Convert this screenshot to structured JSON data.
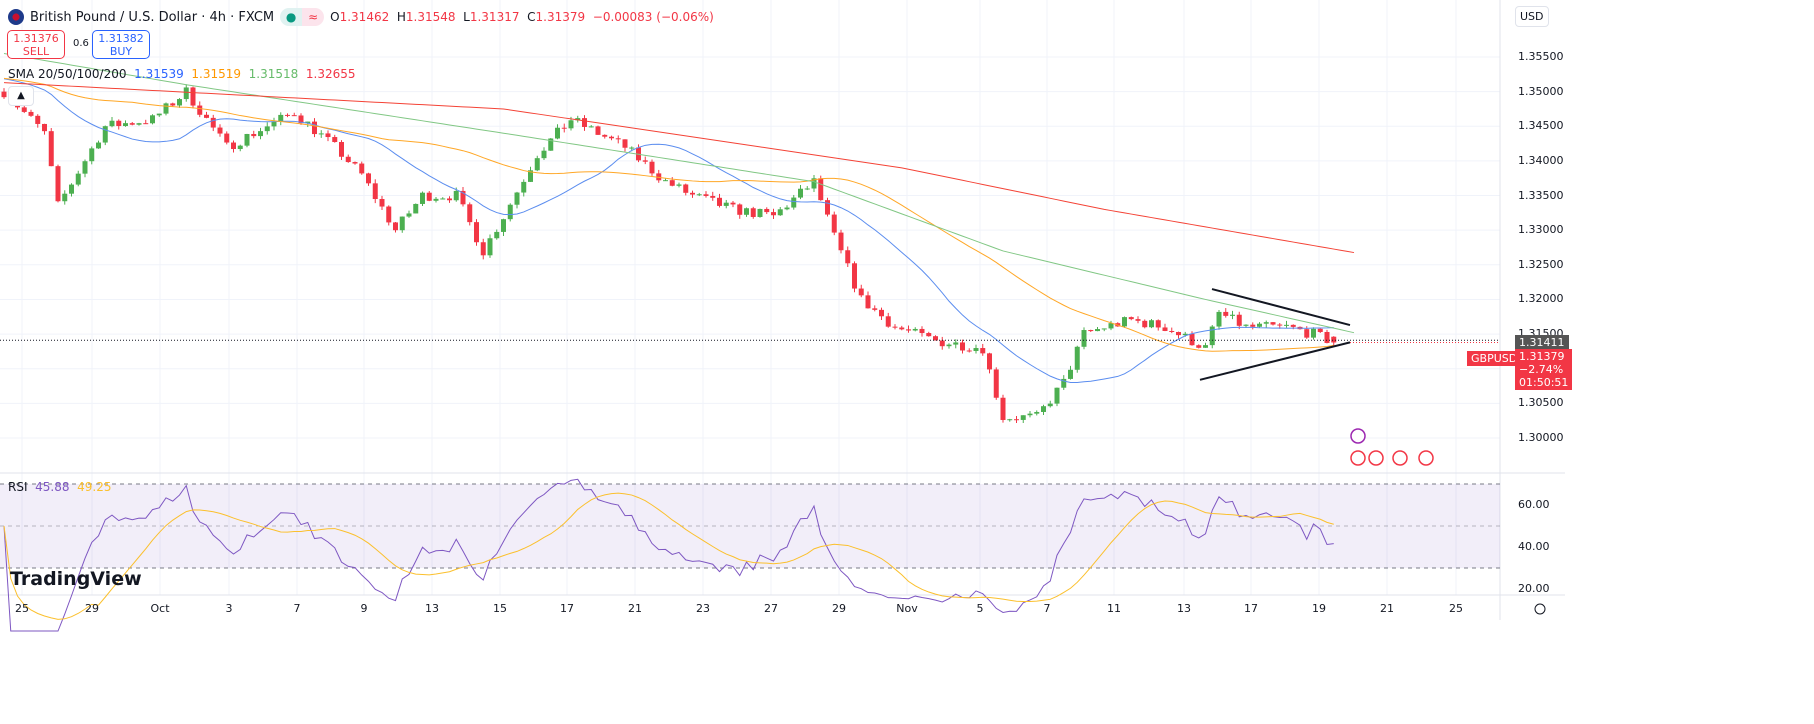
{
  "header": {
    "title": "British Pound / U.S. Dollar · 4h · FXCM",
    "open_label": "O",
    "open": "1.31462",
    "high_label": "H",
    "high": "1.31548",
    "low_label": "L",
    "low": "1.31317",
    "close_label": "C",
    "close": "1.31379",
    "change": "−0.00083 (−0.06%)",
    "market_status_icon": "dot-icon",
    "data_icon": "approx-icon"
  },
  "trade": {
    "sell_price": "1.31376",
    "sell_label": "SELL",
    "spread": "0.6",
    "buy_price": "1.31382",
    "buy_label": "BUY"
  },
  "indicators": {
    "sma_label": "SMA 20/50/100/200",
    "sma20": "1.31539",
    "sma50": "1.31519",
    "sma100": "1.31518",
    "sma200": "1.32655",
    "rsi_label": "RSI",
    "rsi": "45.88",
    "rsi_ma": "49.25"
  },
  "currency": "USD",
  "symbol_label": "GBPUSD",
  "last_price": "1.31379",
  "last_change": "−2.74%",
  "countdown": "01:50:51",
  "crosshair_price": "1.31411",
  "logo": "TradingView",
  "colors": {
    "up": "#4caf50",
    "down": "#f23645",
    "sma20": "#5b8def",
    "sma50": "#ffa726",
    "sma100": "#81c784",
    "sma200": "#f44336",
    "rsi": "#7e57c2",
    "rsi_ma": "#fbc02d"
  },
  "chart_data": {
    "type": "candlestick",
    "timeframe": "4h",
    "ylim": [
      1.2975,
      1.3575
    ],
    "y_ticks": [
      "1.35500",
      "1.35000",
      "1.34500",
      "1.34000",
      "1.33500",
      "1.33000",
      "1.32500",
      "1.32000",
      "1.31500",
      "1.31000",
      "1.30500",
      "1.30000"
    ],
    "x_ticks": [
      "25",
      "29",
      "Oct",
      "3",
      "7",
      "9",
      "13",
      "15",
      "17",
      "21",
      "23",
      "27",
      "29",
      "Nov",
      "5",
      "7",
      "11",
      "13",
      "17",
      "19",
      "21",
      "25"
    ],
    "close_path_anchors": [
      [
        0,
        1.35
      ],
      [
        6,
        1.344
      ],
      [
        8,
        1.3335
      ],
      [
        15,
        1.345
      ],
      [
        22,
        1.346
      ],
      [
        27,
        1.35
      ],
      [
        33,
        1.342
      ],
      [
        43,
        1.347
      ],
      [
        49,
        1.342
      ],
      [
        53,
        1.338
      ],
      [
        58,
        1.33
      ],
      [
        62,
        1.335
      ],
      [
        67,
        1.335
      ],
      [
        71,
        1.327
      ],
      [
        74,
        1.332
      ],
      [
        79,
        1.341
      ],
      [
        84,
        1.346
      ],
      [
        92,
        1.342
      ],
      [
        98,
        1.337
      ],
      [
        102,
        1.335
      ],
      [
        108,
        1.333
      ],
      [
        114,
        1.332
      ],
      [
        120,
        1.337
      ],
      [
        123,
        1.329
      ],
      [
        127,
        1.32
      ],
      [
        132,
        1.316
      ],
      [
        138,
        1.314
      ],
      [
        145,
        1.313
      ],
      [
        148,
        1.303
      ],
      [
        153,
        1.303
      ],
      [
        157,
        1.308
      ],
      [
        160,
        1.315
      ],
      [
        163,
        1.316
      ],
      [
        167,
        1.317
      ],
      [
        172,
        1.316
      ],
      [
        178,
        1.313
      ],
      [
        180,
        1.318
      ],
      [
        184,
        1.316
      ],
      [
        190,
        1.316
      ],
      [
        194,
        1.315
      ],
      [
        197,
        1.3138
      ]
    ],
    "sma100_anchors": [
      [
        0,
        1.3555
      ],
      [
        27,
        1.351
      ],
      [
        74,
        1.344
      ],
      [
        120,
        1.337
      ],
      [
        148,
        1.327
      ],
      [
        178,
        1.32
      ],
      [
        200,
        1.3152
      ]
    ],
    "sma200_anchors": [
      [
        0,
        1.3513
      ],
      [
        74,
        1.3475
      ],
      [
        133,
        1.339
      ],
      [
        163,
        1.333
      ],
      [
        201,
        1.3266
      ]
    ],
    "annotation": "symmetrical triangle",
    "rsi": {
      "levels": [
        70,
        50,
        30
      ],
      "ticks": [
        "60.00",
        "40.00",
        "20.00"
      ]
    }
  }
}
